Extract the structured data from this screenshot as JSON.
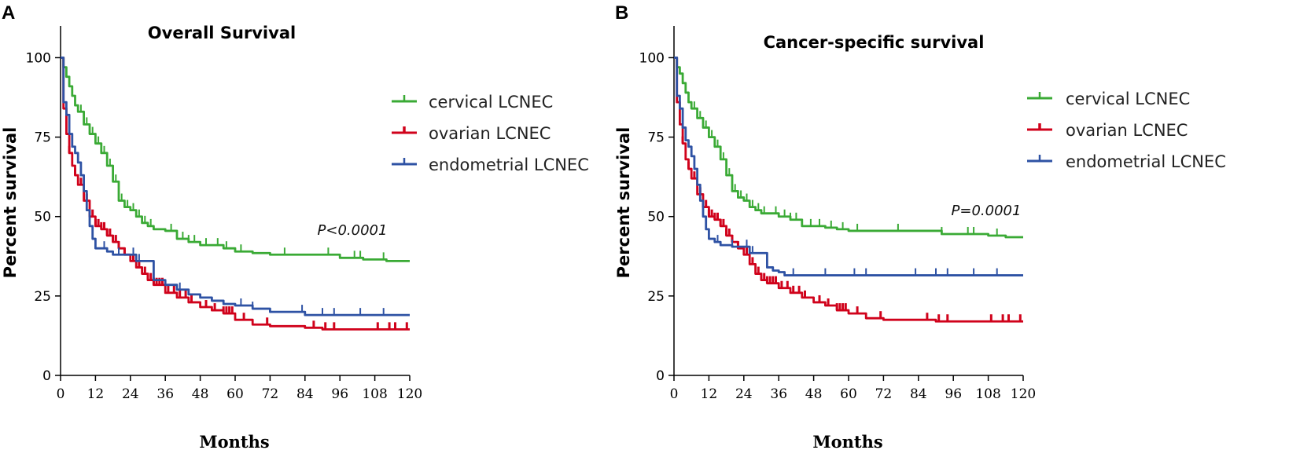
{
  "chart_data": [
    {
      "type": "line",
      "panel": "A",
      "title": "Overall Survival",
      "xlabel": "Months",
      "ylabel": "Percent survival",
      "xlim": [
        0,
        120
      ],
      "ylim": [
        0,
        110
      ],
      "xticks": [
        0,
        12,
        24,
        36,
        48,
        60,
        72,
        84,
        96,
        108,
        120
      ],
      "yticks": [
        0,
        25,
        50,
        75,
        100
      ],
      "annotation": "P<0.0001",
      "legend_position": "right",
      "series": [
        {
          "name": "cervical LCNEC",
          "color": "#3aaa35",
          "x": [
            0,
            1,
            2,
            3,
            4,
            5,
            6,
            8,
            10,
            12,
            14,
            16,
            18,
            20,
            22,
            24,
            26,
            28,
            30,
            32,
            36,
            40,
            44,
            48,
            52,
            56,
            60,
            66,
            72,
            84,
            92,
            96,
            104,
            112,
            120
          ],
          "y": [
            100,
            97,
            94,
            91,
            88,
            85,
            83,
            79,
            76,
            73,
            70,
            66,
            61,
            55,
            53,
            52,
            50,
            48,
            47,
            46,
            45.5,
            43,
            42,
            41,
            41,
            40,
            39,
            38.5,
            38,
            38,
            38,
            37,
            36.5,
            36,
            36
          ],
          "censor": [
            3,
            5,
            7,
            9,
            11,
            13,
            15,
            17,
            19,
            21,
            23,
            25,
            27,
            29,
            31,
            38,
            40,
            42,
            44,
            46,
            50,
            54,
            57,
            62,
            77,
            92,
            101,
            103,
            111
          ]
        },
        {
          "name": "ovarian LCNEC",
          "color": "#d0021b",
          "x": [
            0,
            1,
            2,
            3,
            4,
            5,
            6,
            8,
            10,
            12,
            14,
            16,
            18,
            20,
            22,
            24,
            26,
            28,
            30,
            32,
            36,
            40,
            44,
            48,
            52,
            56,
            60,
            66,
            72,
            84,
            90,
            96,
            108,
            120
          ],
          "y": [
            100,
            84,
            76,
            70,
            66,
            63,
            60,
            55,
            50,
            47,
            46,
            44,
            42,
            40,
            38,
            36,
            34,
            32,
            30,
            28.5,
            26,
            24.5,
            23,
            21.5,
            20.5,
            19.5,
            17.5,
            16,
            15.5,
            15,
            14.5,
            14.5,
            14.5,
            14.5
          ],
          "censor": [
            3,
            5,
            7,
            9,
            10,
            11,
            12,
            13,
            14,
            15,
            16,
            17,
            18,
            19,
            20,
            22,
            25,
            27,
            29,
            30,
            31,
            32,
            33,
            34,
            35,
            37,
            39,
            41,
            43,
            45,
            50,
            53,
            56,
            57,
            58,
            59,
            63,
            71,
            87,
            91,
            94,
            109,
            113,
            115,
            119
          ]
        },
        {
          "name": "endometrial LCNEC",
          "color": "#2e52a4",
          "x": [
            0,
            1,
            2,
            3,
            4,
            5,
            6,
            7,
            8,
            9,
            10,
            11,
            12,
            14,
            16,
            18,
            20,
            22,
            24,
            26,
            28,
            30,
            32,
            36,
            40,
            44,
            48,
            52,
            56,
            60,
            66,
            72,
            84,
            96,
            108,
            120
          ],
          "y": [
            100,
            86,
            82,
            76,
            72,
            70,
            67,
            63,
            58,
            52,
            47,
            43,
            40,
            40,
            39,
            38,
            38,
            38,
            38,
            36,
            36,
            36,
            30,
            28.5,
            27,
            25.5,
            24.5,
            23.5,
            22.5,
            22,
            21,
            20,
            19,
            19,
            19,
            19
          ],
          "censor": [
            3,
            5,
            15,
            20,
            25,
            27,
            41,
            62,
            66,
            83,
            90,
            94,
            103,
            111
          ]
        }
      ]
    },
    {
      "type": "line",
      "panel": "B",
      "title": "Cancer-specific survival",
      "xlabel": "Months",
      "ylabel": "Percent survival",
      "xlim": [
        0,
        120
      ],
      "ylim": [
        0,
        110
      ],
      "xticks": [
        0,
        12,
        24,
        36,
        48,
        60,
        72,
        84,
        96,
        108,
        120
      ],
      "yticks": [
        0,
        25,
        50,
        75,
        100
      ],
      "annotation": "P=0.0001",
      "legend_position": "right",
      "series": [
        {
          "name": "cervical LCNEC",
          "color": "#3aaa35",
          "x": [
            0,
            1,
            2,
            3,
            4,
            5,
            6,
            8,
            10,
            12,
            14,
            16,
            18,
            20,
            22,
            24,
            26,
            28,
            30,
            32,
            36,
            40,
            44,
            48,
            52,
            56,
            60,
            72,
            84,
            92,
            100,
            108,
            114,
            120
          ],
          "y": [
            100,
            97,
            95,
            92,
            89,
            86,
            84,
            81,
            78,
            75,
            72,
            68,
            63,
            58,
            56,
            55,
            53,
            52,
            51,
            51,
            50,
            49,
            47,
            47,
            46.5,
            46,
            45.5,
            45.5,
            45.5,
            44.5,
            44.5,
            44,
            43.5,
            43.5
          ],
          "censor": [
            3,
            5,
            7,
            9,
            11,
            13,
            15,
            17,
            19,
            21,
            23,
            25,
            27,
            29,
            31,
            35,
            38,
            40,
            42,
            44,
            47,
            50,
            54,
            58,
            63,
            77,
            92,
            101,
            103,
            111
          ]
        },
        {
          "name": "ovarian LCNEC",
          "color": "#d0021b",
          "x": [
            0,
            1,
            2,
            3,
            4,
            5,
            6,
            8,
            10,
            12,
            14,
            16,
            18,
            20,
            22,
            24,
            26,
            28,
            30,
            32,
            36,
            40,
            44,
            48,
            52,
            56,
            60,
            66,
            72,
            84,
            90,
            96,
            108,
            120
          ],
          "y": [
            100,
            86,
            79,
            73,
            68,
            65,
            62,
            57,
            53,
            50,
            49,
            47,
            44,
            42,
            40,
            38,
            35,
            32,
            30,
            29,
            27.5,
            26,
            24.5,
            23,
            22,
            20.5,
            19.5,
            18,
            17.5,
            17.5,
            17,
            17,
            17,
            17
          ],
          "censor": [
            3,
            5,
            7,
            9,
            10,
            11,
            12,
            13,
            14,
            15,
            16,
            17,
            18,
            19,
            20,
            22,
            25,
            27,
            29,
            30,
            31,
            32,
            33,
            34,
            35,
            37,
            39,
            41,
            43,
            45,
            50,
            53,
            56,
            57,
            58,
            59,
            63,
            71,
            87,
            91,
            94,
            109,
            113,
            115,
            119
          ]
        },
        {
          "name": "endometrial LCNEC",
          "color": "#2e52a4",
          "x": [
            0,
            1,
            2,
            3,
            4,
            5,
            6,
            7,
            8,
            9,
            10,
            11,
            12,
            14,
            16,
            18,
            20,
            22,
            24,
            26,
            28,
            30,
            32,
            34,
            36,
            38,
            40,
            44,
            48,
            60,
            72,
            84,
            96,
            108,
            120
          ],
          "y": [
            100,
            88,
            84,
            78,
            74,
            72,
            69,
            65,
            60,
            55,
            50,
            46,
            43,
            42,
            41,
            41,
            40.5,
            40.5,
            40.5,
            38.5,
            38.5,
            38.5,
            34,
            33,
            32.5,
            31.5,
            31.5,
            31.5,
            31.5,
            31.5,
            31.5,
            31.5,
            31.5,
            31.5,
            31.5
          ],
          "censor": [
            3,
            5,
            15,
            20,
            25,
            27,
            41,
            52,
            62,
            66,
            83,
            90,
            94,
            103,
            111
          ]
        }
      ]
    }
  ]
}
